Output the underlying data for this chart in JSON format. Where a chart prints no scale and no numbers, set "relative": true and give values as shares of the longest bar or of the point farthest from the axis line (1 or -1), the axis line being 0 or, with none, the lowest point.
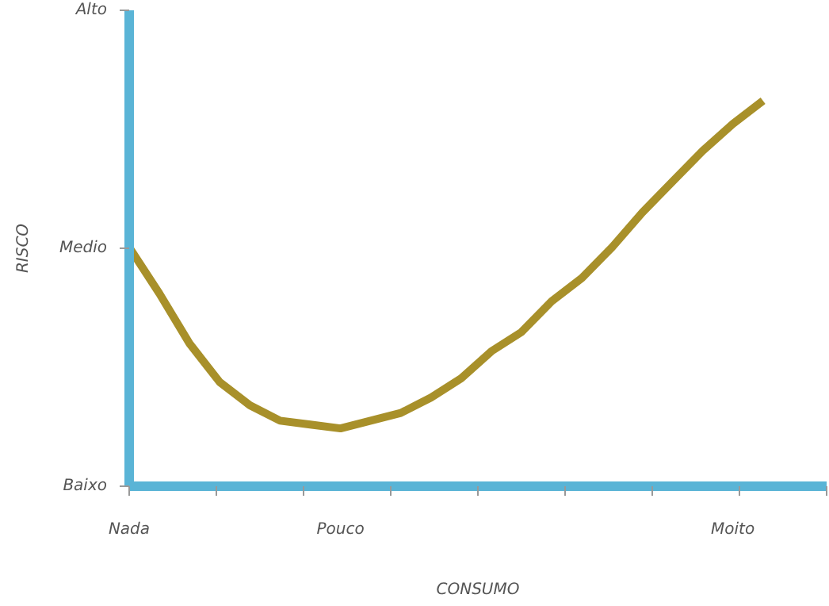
{
  "chart_data": {
    "type": "line",
    "xlabel": "CONSUMO",
    "ylabel": "RISCO",
    "relative": true,
    "categories": [
      "Nada",
      null,
      null,
      null,
      null,
      null,
      null,
      "Pouco",
      null,
      null,
      null,
      null,
      null,
      null,
      null,
      null,
      null,
      null,
      null,
      null,
      "Moito",
      null
    ],
    "annotations": [
      "Baixo",
      "Medio",
      "Alto"
    ],
    "grid": false,
    "marker": "none",
    "line_style": "solid",
    "series": [
      {
        "color": "#a8902a",
        "values": [
          0.62,
          0.5,
          0.37,
          0.27,
          0.21,
          0.17,
          0.16,
          0.15,
          0.17,
          0.19,
          0.23,
          0.28,
          0.35,
          0.4,
          0.48,
          0.54,
          0.62,
          0.71,
          0.79,
          0.87,
          0.94,
          1.0
        ]
      }
    ]
  }
}
